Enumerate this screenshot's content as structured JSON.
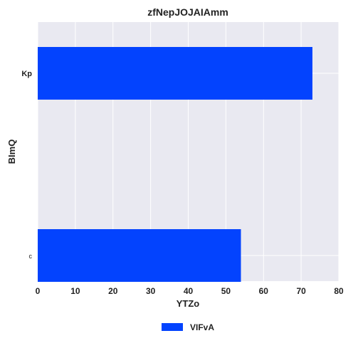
{
  "chart_data": {
    "type": "bar",
    "orientation": "horizontal",
    "title": "zfNepJOJAIAmm",
    "xlabel": "YTZo",
    "ylabel": "BImQ",
    "categories": [
      "Kp",
      "c"
    ],
    "series": [
      {
        "name": "VIFvA",
        "values": [
          73,
          54
        ]
      }
    ],
    "xlim": [
      0,
      80
    ],
    "xticks": [
      0,
      10,
      20,
      30,
      40,
      50,
      60,
      70,
      80
    ],
    "grid": true,
    "legend_position": "bottom-center",
    "colors": {
      "bar": "#0343fe",
      "plot_bg": "#e9e9f1",
      "grid": "#ffffff"
    }
  }
}
